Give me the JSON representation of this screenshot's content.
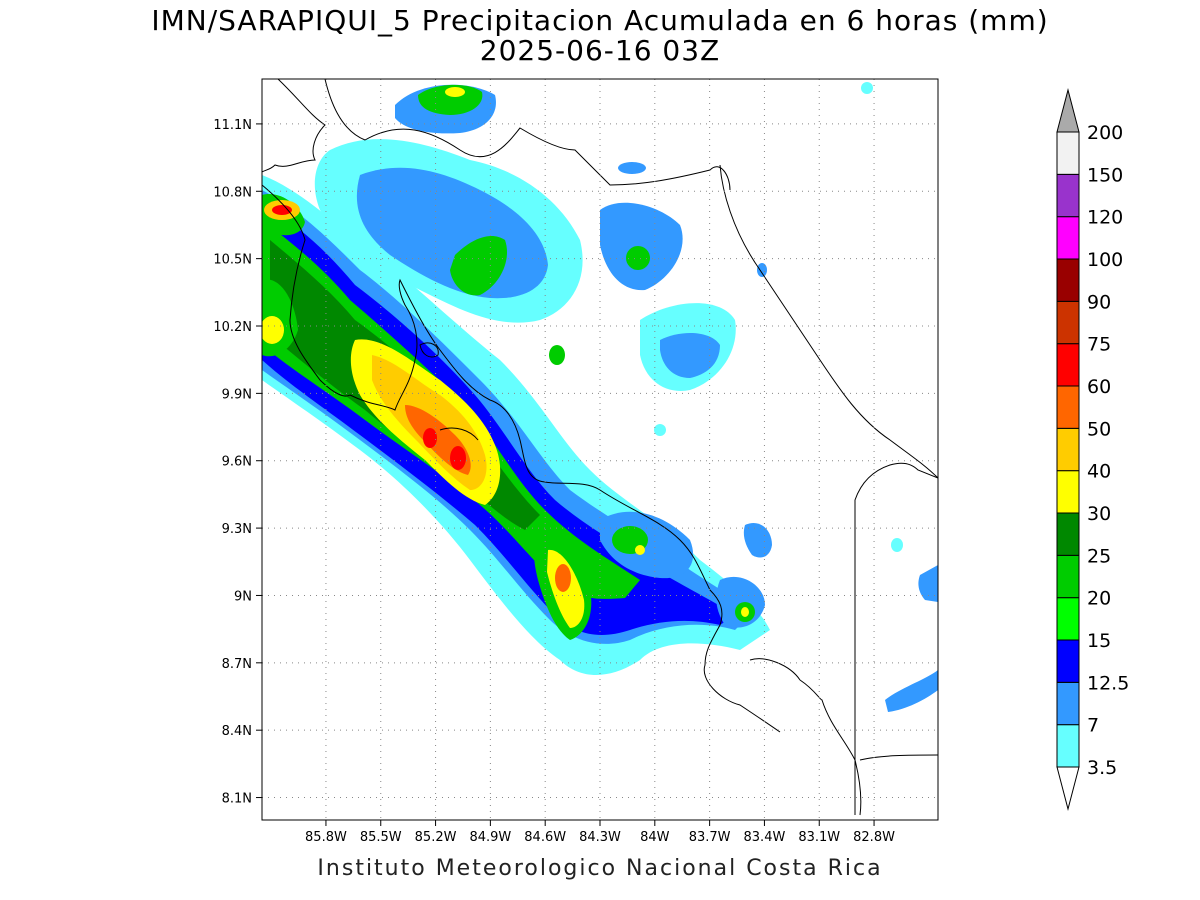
{
  "title": {
    "line1": "IMN/SARAPIQUI_5 Precipitacion Acumulada en 6 horas (mm)",
    "line2": "2025-06-16 03Z"
  },
  "credit": "Instituto Meteorologico Nacional Costa Rica",
  "map": {
    "lon_range": [
      -86.15,
      -82.45
    ],
    "lat_range": [
      8.0,
      11.3
    ],
    "lat_ticks": [
      {
        "value": 11.1,
        "label": "11.1N"
      },
      {
        "value": 10.8,
        "label": "10.8N"
      },
      {
        "value": 10.5,
        "label": "10.5N"
      },
      {
        "value": 10.2,
        "label": "10.2N"
      },
      {
        "value": 9.9,
        "label": "9.9N"
      },
      {
        "value": 9.6,
        "label": "9.6N"
      },
      {
        "value": 9.3,
        "label": "9.3N"
      },
      {
        "value": 9.0,
        "label": "9N"
      },
      {
        "value": 8.7,
        "label": "8.7N"
      },
      {
        "value": 8.4,
        "label": "8.4N"
      },
      {
        "value": 8.1,
        "label": "8.1N"
      }
    ],
    "lon_ticks": [
      {
        "value": -85.8,
        "label": "85.8W"
      },
      {
        "value": -85.5,
        "label": "85.5W"
      },
      {
        "value": -85.2,
        "label": "85.2W"
      },
      {
        "value": -84.9,
        "label": "84.9W"
      },
      {
        "value": -84.6,
        "label": "84.6W"
      },
      {
        "value": -84.3,
        "label": "84.3W"
      },
      {
        "value": -84.0,
        "label": "84W"
      },
      {
        "value": -83.7,
        "label": "83.7W"
      },
      {
        "value": -83.4,
        "label": "83.4W"
      },
      {
        "value": -83.1,
        "label": "83.1W"
      },
      {
        "value": -82.8,
        "label": "82.8W"
      }
    ],
    "grid": "dotted"
  },
  "colorbar": {
    "levels": [
      {
        "label": "3.5",
        "color": "#66ffff"
      },
      {
        "label": "7",
        "color": "#3399ff"
      },
      {
        "label": "12.5",
        "color": "#0000ff"
      },
      {
        "label": "15",
        "color": "#00ff00"
      },
      {
        "label": "20",
        "color": "#00cc00"
      },
      {
        "label": "25",
        "color": "#008800"
      },
      {
        "label": "30",
        "color": "#ffff00"
      },
      {
        "label": "40",
        "color": "#ffcc00"
      },
      {
        "label": "50",
        "color": "#ff6600"
      },
      {
        "label": "60",
        "color": "#ff0000"
      },
      {
        "label": "75",
        "color": "#cc3300"
      },
      {
        "label": "90",
        "color": "#990000"
      },
      {
        "label": "100",
        "color": "#ff00ff"
      },
      {
        "label": "120",
        "color": "#9933cc"
      },
      {
        "label": "150",
        "color": "#f2f2f2"
      },
      {
        "label": "200",
        "color": "#aaaaaa"
      }
    ]
  },
  "precip_cells": [
    {
      "lon": -86.0,
      "lat": 10.7,
      "rx": 0.18,
      "ry": 0.25,
      "level": 15
    },
    {
      "lon": -86.0,
      "lat": 10.2,
      "rx": 0.2,
      "ry": 0.3,
      "level": 20
    },
    {
      "lon": -85.95,
      "lat": 10.75,
      "rx": 0.1,
      "ry": 0.06,
      "level": 60
    },
    {
      "lon": -85.5,
      "lat": 10.35,
      "rx": 0.15,
      "ry": 0.2,
      "level": 12.5
    },
    {
      "lon": -85.2,
      "lat": 9.85,
      "rx": 0.25,
      "ry": 0.22,
      "level": 30
    },
    {
      "lon": -85.05,
      "lat": 9.7,
      "rx": 0.12,
      "ry": 0.1,
      "level": 50
    },
    {
      "lon": -84.9,
      "lat": 9.7,
      "rx": 0.15,
      "ry": 0.22,
      "level": 40
    },
    {
      "lon": -84.45,
      "lat": 9.05,
      "rx": 0.15,
      "ry": 0.2,
      "level": 30
    },
    {
      "lon": -84.45,
      "lat": 9.1,
      "rx": 0.06,
      "ry": 0.06,
      "level": 50
    },
    {
      "lon": -84.85,
      "lat": 10.55,
      "rx": 0.25,
      "ry": 0.15,
      "level": 15
    },
    {
      "lon": -84.1,
      "lat": 10.55,
      "rx": 0.15,
      "ry": 0.15,
      "level": 12.5
    },
    {
      "lon": -83.8,
      "lat": 10.1,
      "rx": 0.2,
      "ry": 0.2,
      "level": 7
    },
    {
      "lon": -84.1,
      "lat": 9.3,
      "rx": 0.2,
      "ry": 0.15,
      "level": 15
    },
    {
      "lon": -83.55,
      "lat": 8.92,
      "rx": 0.12,
      "ry": 0.12,
      "level": 20
    },
    {
      "lon": -85.0,
      "lat": 11.2,
      "rx": 0.15,
      "ry": 0.1,
      "level": 20
    },
    {
      "lon": -82.5,
      "lat": 9.1,
      "rx": 0.08,
      "ry": 0.1,
      "level": 15
    },
    {
      "lon": -82.6,
      "lat": 8.55,
      "rx": 0.15,
      "ry": 0.08,
      "level": 12.5
    }
  ]
}
